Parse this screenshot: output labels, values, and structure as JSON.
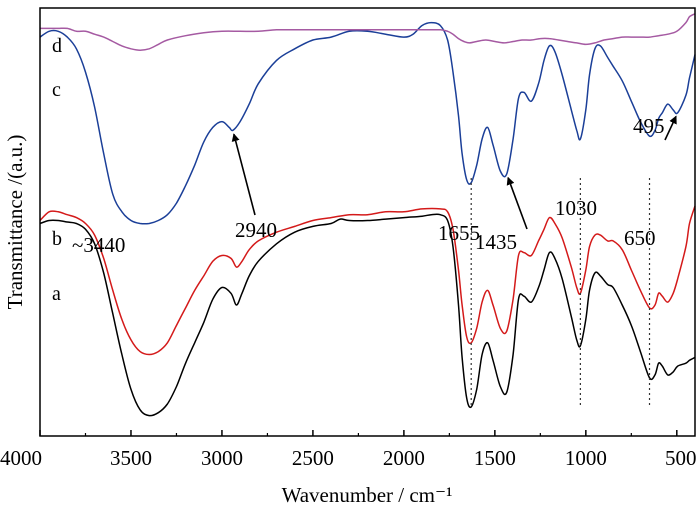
{
  "chart_data": {
    "type": "line",
    "title": "",
    "xlabel": "Wavenumber / cm⁻¹",
    "ylabel": "Transmittance /(a.u.)",
    "xlim": [
      4000,
      400
    ],
    "x_reversed": true,
    "x_ticks": [
      4000,
      3500,
      3000,
      2500,
      2000,
      1500,
      1000,
      500
    ],
    "y_ticks_shown": false,
    "grid": false,
    "legend": "none",
    "series": [
      {
        "name": "a",
        "color": "#000000",
        "offset": 0,
        "points": [
          [
            4000,
            0.88
          ],
          [
            3950,
            0.89
          ],
          [
            3900,
            0.89
          ],
          [
            3850,
            0.885
          ],
          [
            3800,
            0.88
          ],
          [
            3750,
            0.86
          ],
          [
            3700,
            0.81
          ],
          [
            3650,
            0.71
          ],
          [
            3600,
            0.57
          ],
          [
            3550,
            0.43
          ],
          [
            3500,
            0.31
          ],
          [
            3450,
            0.24
          ],
          [
            3400,
            0.22
          ],
          [
            3350,
            0.23
          ],
          [
            3300,
            0.26
          ],
          [
            3250,
            0.32
          ],
          [
            3200,
            0.4
          ],
          [
            3150,
            0.47
          ],
          [
            3100,
            0.54
          ],
          [
            3050,
            0.62
          ],
          [
            3000,
            0.66
          ],
          [
            2950,
            0.64
          ],
          [
            2920,
            0.6
          ],
          [
            2890,
            0.64
          ],
          [
            2850,
            0.7
          ],
          [
            2800,
            0.75
          ],
          [
            2700,
            0.81
          ],
          [
            2600,
            0.85
          ],
          [
            2500,
            0.87
          ],
          [
            2400,
            0.88
          ],
          [
            2350,
            0.895
          ],
          [
            2300,
            0.89
          ],
          [
            2200,
            0.89
          ],
          [
            2100,
            0.895
          ],
          [
            2000,
            0.9
          ],
          [
            1900,
            0.905
          ],
          [
            1850,
            0.91
          ],
          [
            1800,
            0.91
          ],
          [
            1760,
            0.89
          ],
          [
            1730,
            0.8
          ],
          [
            1700,
            0.6
          ],
          [
            1680,
            0.42
          ],
          [
            1655,
            0.28
          ],
          [
            1630,
            0.25
          ],
          [
            1600,
            0.31
          ],
          [
            1570,
            0.43
          ],
          [
            1540,
            0.47
          ],
          [
            1510,
            0.41
          ],
          [
            1470,
            0.32
          ],
          [
            1435,
            0.3
          ],
          [
            1400,
            0.43
          ],
          [
            1370,
            0.62
          ],
          [
            1340,
            0.63
          ],
          [
            1300,
            0.61
          ],
          [
            1260,
            0.66
          ],
          [
            1230,
            0.72
          ],
          [
            1200,
            0.78
          ],
          [
            1170,
            0.76
          ],
          [
            1130,
            0.69
          ],
          [
            1080,
            0.56
          ],
          [
            1050,
            0.48
          ],
          [
            1030,
            0.46
          ],
          [
            1000,
            0.55
          ],
          [
            980,
            0.65
          ],
          [
            950,
            0.71
          ],
          [
            920,
            0.7
          ],
          [
            880,
            0.67
          ],
          [
            850,
            0.66
          ],
          [
            800,
            0.6
          ],
          [
            750,
            0.53
          ],
          [
            700,
            0.44
          ],
          [
            650,
            0.35
          ],
          [
            620,
            0.36
          ],
          [
            600,
            0.4
          ],
          [
            580,
            0.39
          ],
          [
            550,
            0.36
          ],
          [
            520,
            0.37
          ],
          [
            495,
            0.39
          ],
          [
            450,
            0.4
          ],
          [
            430,
            0.41
          ],
          [
            400,
            0.42
          ]
        ]
      },
      {
        "name": "b",
        "color": "#d41a1a",
        "offset": 0.22,
        "points": [
          [
            4000,
            0.67
          ],
          [
            3950,
            0.7
          ],
          [
            3900,
            0.7
          ],
          [
            3850,
            0.69
          ],
          [
            3800,
            0.68
          ],
          [
            3750,
            0.66
          ],
          [
            3700,
            0.62
          ],
          [
            3650,
            0.54
          ],
          [
            3600,
            0.43
          ],
          [
            3550,
            0.33
          ],
          [
            3500,
            0.26
          ],
          [
            3450,
            0.22
          ],
          [
            3400,
            0.21
          ],
          [
            3350,
            0.22
          ],
          [
            3300,
            0.25
          ],
          [
            3250,
            0.31
          ],
          [
            3200,
            0.37
          ],
          [
            3150,
            0.43
          ],
          [
            3100,
            0.48
          ],
          [
            3050,
            0.53
          ],
          [
            3000,
            0.55
          ],
          [
            2950,
            0.54
          ],
          [
            2920,
            0.51
          ],
          [
            2890,
            0.53
          ],
          [
            2850,
            0.57
          ],
          [
            2800,
            0.6
          ],
          [
            2700,
            0.63
          ],
          [
            2600,
            0.65
          ],
          [
            2500,
            0.67
          ],
          [
            2400,
            0.68
          ],
          [
            2300,
            0.69
          ],
          [
            2200,
            0.69
          ],
          [
            2100,
            0.7
          ],
          [
            2000,
            0.7
          ],
          [
            1900,
            0.71
          ],
          [
            1800,
            0.71
          ],
          [
            1760,
            0.7
          ],
          [
            1730,
            0.64
          ],
          [
            1700,
            0.5
          ],
          [
            1680,
            0.38
          ],
          [
            1655,
            0.27
          ],
          [
            1630,
            0.25
          ],
          [
            1600,
            0.3
          ],
          [
            1570,
            0.39
          ],
          [
            1540,
            0.43
          ],
          [
            1510,
            0.38
          ],
          [
            1470,
            0.3
          ],
          [
            1435,
            0.29
          ],
          [
            1400,
            0.4
          ],
          [
            1370,
            0.55
          ],
          [
            1340,
            0.56
          ],
          [
            1300,
            0.55
          ],
          [
            1260,
            0.6
          ],
          [
            1230,
            0.64
          ],
          [
            1200,
            0.68
          ],
          [
            1170,
            0.66
          ],
          [
            1130,
            0.61
          ],
          [
            1080,
            0.51
          ],
          [
            1050,
            0.44
          ],
          [
            1030,
            0.42
          ],
          [
            1000,
            0.5
          ],
          [
            980,
            0.58
          ],
          [
            950,
            0.62
          ],
          [
            920,
            0.62
          ],
          [
            880,
            0.6
          ],
          [
            850,
            0.6
          ],
          [
            800,
            0.57
          ],
          [
            750,
            0.5
          ],
          [
            700,
            0.43
          ],
          [
            650,
            0.37
          ],
          [
            620,
            0.38
          ],
          [
            600,
            0.42
          ],
          [
            580,
            0.41
          ],
          [
            550,
            0.39
          ],
          [
            520,
            0.42
          ],
          [
            495,
            0.47
          ],
          [
            450,
            0.58
          ],
          [
            430,
            0.66
          ],
          [
            400,
            0.72
          ]
        ]
      },
      {
        "name": "c",
        "color": "#1b3f98",
        "offset": 0.5,
        "points": [
          [
            4000,
            1.02
          ],
          [
            3950,
            1.04
          ],
          [
            3900,
            1.04
          ],
          [
            3850,
            1.02
          ],
          [
            3800,
            0.98
          ],
          [
            3750,
            0.9
          ],
          [
            3700,
            0.78
          ],
          [
            3650,
            0.62
          ],
          [
            3600,
            0.48
          ],
          [
            3550,
            0.42
          ],
          [
            3500,
            0.39
          ],
          [
            3450,
            0.38
          ],
          [
            3400,
            0.38
          ],
          [
            3350,
            0.39
          ],
          [
            3300,
            0.41
          ],
          [
            3250,
            0.45
          ],
          [
            3200,
            0.51
          ],
          [
            3150,
            0.58
          ],
          [
            3100,
            0.66
          ],
          [
            3050,
            0.71
          ],
          [
            3000,
            0.73
          ],
          [
            2960,
            0.71
          ],
          [
            2940,
            0.7
          ],
          [
            2900,
            0.73
          ],
          [
            2850,
            0.79
          ],
          [
            2800,
            0.86
          ],
          [
            2700,
            0.94
          ],
          [
            2600,
            0.98
          ],
          [
            2500,
            1.01
          ],
          [
            2400,
            1.02
          ],
          [
            2300,
            1.04
          ],
          [
            2200,
            1.04
          ],
          [
            2100,
            1.03
          ],
          [
            2000,
            1.02
          ],
          [
            1950,
            1.03
          ],
          [
            1900,
            1.06
          ],
          [
            1850,
            1.07
          ],
          [
            1800,
            1.06
          ],
          [
            1760,
            1.01
          ],
          [
            1730,
            0.9
          ],
          [
            1700,
            0.75
          ],
          [
            1680,
            0.62
          ],
          [
            1655,
            0.53
          ],
          [
            1630,
            0.52
          ],
          [
            1600,
            0.58
          ],
          [
            1570,
            0.67
          ],
          [
            1540,
            0.71
          ],
          [
            1510,
            0.65
          ],
          [
            1470,
            0.56
          ],
          [
            1435,
            0.55
          ],
          [
            1400,
            0.67
          ],
          [
            1370,
            0.81
          ],
          [
            1340,
            0.83
          ],
          [
            1300,
            0.8
          ],
          [
            1260,
            0.86
          ],
          [
            1230,
            0.94
          ],
          [
            1200,
            0.99
          ],
          [
            1170,
            0.97
          ],
          [
            1130,
            0.89
          ],
          [
            1080,
            0.77
          ],
          [
            1050,
            0.7
          ],
          [
            1030,
            0.67
          ],
          [
            1000,
            0.77
          ],
          [
            980,
            0.89
          ],
          [
            950,
            0.98
          ],
          [
            920,
            0.99
          ],
          [
            880,
            0.95
          ],
          [
            850,
            0.92
          ],
          [
            800,
            0.87
          ],
          [
            750,
            0.8
          ],
          [
            700,
            0.73
          ],
          [
            650,
            0.68
          ],
          [
            620,
            0.7
          ],
          [
            600,
            0.74
          ],
          [
            580,
            0.76
          ],
          [
            550,
            0.79
          ],
          [
            520,
            0.77
          ],
          [
            495,
            0.76
          ],
          [
            450,
            0.82
          ],
          [
            430,
            0.88
          ],
          [
            400,
            0.96
          ]
        ]
      },
      {
        "name": "d",
        "color": "#a55aa2",
        "offset": 1.5,
        "points": [
          [
            4000,
            0.05
          ],
          [
            3950,
            0.05
          ],
          [
            3900,
            0.05
          ],
          [
            3850,
            0.05
          ],
          [
            3800,
            0.04
          ],
          [
            3750,
            0.04
          ],
          [
            3700,
            0.03
          ],
          [
            3650,
            0.02
          ],
          [
            3600,
            0.005
          ],
          [
            3550,
            -0.01
          ],
          [
            3500,
            -0.02
          ],
          [
            3450,
            -0.025
          ],
          [
            3400,
            -0.02
          ],
          [
            3350,
            -0.005
          ],
          [
            3300,
            0.01
          ],
          [
            3200,
            0.025
          ],
          [
            3100,
            0.035
          ],
          [
            3000,
            0.04
          ],
          [
            2900,
            0.04
          ],
          [
            2800,
            0.04
          ],
          [
            2700,
            0.045
          ],
          [
            2600,
            0.045
          ],
          [
            2500,
            0.045
          ],
          [
            2400,
            0.045
          ],
          [
            2300,
            0.045
          ],
          [
            2200,
            0.045
          ],
          [
            2100,
            0.045
          ],
          [
            2000,
            0.045
          ],
          [
            1900,
            0.045
          ],
          [
            1800,
            0.045
          ],
          [
            1760,
            0.04
          ],
          [
            1730,
            0.03
          ],
          [
            1700,
            0.015
          ],
          [
            1670,
            0.005
          ],
          [
            1640,
            0.0
          ],
          [
            1600,
            0.005
          ],
          [
            1550,
            0.01
          ],
          [
            1500,
            0.005
          ],
          [
            1450,
            0.0
          ],
          [
            1400,
            0.005
          ],
          [
            1350,
            0.01
          ],
          [
            1300,
            0.01
          ],
          [
            1250,
            0.015
          ],
          [
            1200,
            0.015
          ],
          [
            1150,
            0.01
          ],
          [
            1100,
            0.005
          ],
          [
            1050,
            0.0
          ],
          [
            1000,
            -0.005
          ],
          [
            950,
            0.0
          ],
          [
            900,
            0.01
          ],
          [
            850,
            0.015
          ],
          [
            800,
            0.02
          ],
          [
            750,
            0.02
          ],
          [
            700,
            0.02
          ],
          [
            650,
            0.02
          ],
          [
            600,
            0.025
          ],
          [
            550,
            0.03
          ],
          [
            500,
            0.04
          ],
          [
            450,
            0.07
          ],
          [
            430,
            0.09
          ],
          [
            400,
            0.1
          ]
        ]
      }
    ],
    "annotations": [
      {
        "id": "3440",
        "label": "~3440"
      },
      {
        "id": "2940",
        "label": "2940"
      },
      {
        "id": "1655",
        "label": "1655"
      },
      {
        "id": "1435",
        "label": "1435"
      },
      {
        "id": "1030",
        "label": "1030"
      },
      {
        "id": "650",
        "label": "650"
      },
      {
        "id": "495",
        "label": "495"
      }
    ],
    "dotted_guides_at": [
      1630,
      1030,
      650
    ]
  }
}
